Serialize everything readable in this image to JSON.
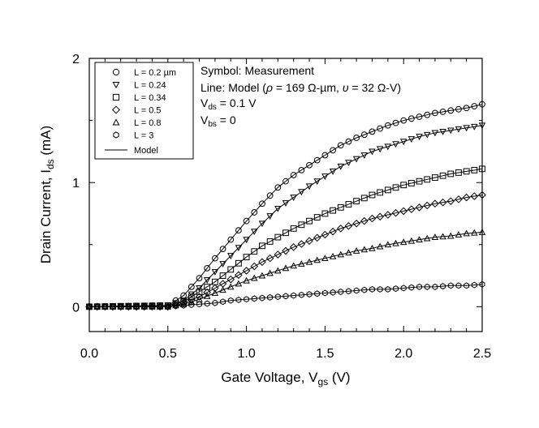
{
  "chart_data": {
    "type": "scatter",
    "xlabel": {
      "main": "Gate Voltage, V",
      "sub": "gs",
      "unit": " (V)"
    },
    "ylabel": {
      "main": "Drain Current, I",
      "sub": "ds",
      "unit": " (mA)"
    },
    "xlim": [
      0,
      2.5
    ],
    "ylim": [
      -0.2,
      2
    ],
    "x_ticks": [
      0.0,
      0.5,
      1.0,
      1.5,
      2.0,
      2.5
    ],
    "x_tick_labels": [
      "0.0",
      "0.5",
      "1.0",
      "1.5",
      "2.0",
      "2.5"
    ],
    "y_ticks": [
      0,
      1,
      2
    ],
    "y_tick_labels": [
      "0",
      "1",
      "2"
    ],
    "grid": false,
    "legend_position": "top-left",
    "series": [
      {
        "name": "L = 0.2 µm",
        "marker": "circle",
        "vth": 0.5,
        "ymax": 1.63,
        "x": [
          0.0,
          0.5,
          0.6,
          0.7,
          0.8,
          0.9,
          1.0,
          1.1,
          1.2,
          1.3,
          1.4,
          1.5,
          1.6,
          1.7,
          1.8,
          1.9,
          2.0,
          2.1,
          2.2,
          2.3,
          2.4,
          2.5
        ],
        "values": [
          0.0,
          0.01,
          0.09,
          0.23,
          0.39,
          0.54,
          0.69,
          0.83,
          0.96,
          1.06,
          1.14,
          1.22,
          1.3,
          1.36,
          1.41,
          1.46,
          1.5,
          1.53,
          1.56,
          1.58,
          1.6,
          1.63
        ]
      },
      {
        "name": "L = 0.24",
        "marker": "triangle-down",
        "vth": 0.52,
        "ymax": 1.46,
        "x": [
          0.0,
          0.5,
          0.6,
          0.7,
          0.8,
          0.9,
          1.0,
          1.1,
          1.2,
          1.3,
          1.4,
          1.5,
          1.6,
          1.7,
          1.8,
          1.9,
          2.0,
          2.1,
          2.2,
          2.3,
          2.4,
          2.5
        ],
        "values": [
          0.0,
          0.01,
          0.05,
          0.15,
          0.28,
          0.41,
          0.54,
          0.67,
          0.79,
          0.88,
          0.97,
          1.05,
          1.13,
          1.19,
          1.25,
          1.29,
          1.33,
          1.37,
          1.4,
          1.42,
          1.44,
          1.46
        ]
      },
      {
        "name": "L = 0.34",
        "marker": "square",
        "vth": 0.53,
        "ymax": 1.11,
        "x": [
          0.0,
          0.5,
          0.6,
          0.7,
          0.8,
          0.9,
          1.0,
          1.1,
          1.2,
          1.3,
          1.4,
          1.5,
          1.6,
          1.7,
          1.8,
          1.9,
          2.0,
          2.1,
          2.2,
          2.3,
          2.4,
          2.5
        ],
        "values": [
          0.0,
          0.01,
          0.04,
          0.12,
          0.2,
          0.3,
          0.4,
          0.49,
          0.56,
          0.63,
          0.69,
          0.75,
          0.8,
          0.85,
          0.9,
          0.94,
          0.98,
          1.01,
          1.04,
          1.07,
          1.09,
          1.11
        ]
      },
      {
        "name": "L = 0.5",
        "marker": "diamond",
        "vth": 0.55,
        "ymax": 0.9,
        "x": [
          0.0,
          0.5,
          0.6,
          0.7,
          0.8,
          0.9,
          1.0,
          1.1,
          1.2,
          1.3,
          1.4,
          1.5,
          1.6,
          1.7,
          1.8,
          1.9,
          2.0,
          2.1,
          2.2,
          2.3,
          2.4,
          2.5
        ],
        "values": [
          0.0,
          0.0,
          0.03,
          0.08,
          0.15,
          0.22,
          0.29,
          0.36,
          0.42,
          0.48,
          0.53,
          0.58,
          0.63,
          0.67,
          0.71,
          0.74,
          0.77,
          0.8,
          0.83,
          0.85,
          0.88,
          0.9
        ]
      },
      {
        "name": "L = 0.8",
        "marker": "triangle-up",
        "vth": 0.55,
        "ymax": 0.6,
        "x": [
          0.0,
          0.5,
          0.6,
          0.7,
          0.8,
          0.9,
          1.0,
          1.1,
          1.2,
          1.3,
          1.4,
          1.5,
          1.6,
          1.7,
          1.8,
          1.9,
          2.0,
          2.1,
          2.2,
          2.3,
          2.4,
          2.5
        ],
        "values": [
          0.0,
          0.0,
          0.02,
          0.06,
          0.11,
          0.16,
          0.21,
          0.25,
          0.29,
          0.33,
          0.36,
          0.39,
          0.42,
          0.45,
          0.47,
          0.5,
          0.52,
          0.54,
          0.56,
          0.57,
          0.59,
          0.6
        ]
      },
      {
        "name": "L = 3",
        "marker": "hexagon",
        "vth": 0.55,
        "ymax": 0.18,
        "x": [
          0.0,
          0.5,
          0.6,
          0.7,
          0.8,
          0.9,
          1.0,
          1.1,
          1.2,
          1.3,
          1.4,
          1.5,
          1.6,
          1.7,
          1.8,
          1.9,
          2.0,
          2.1,
          2.2,
          2.3,
          2.4,
          2.5
        ],
        "values": [
          0.0,
          0.0,
          0.01,
          0.02,
          0.03,
          0.05,
          0.06,
          0.07,
          0.08,
          0.09,
          0.1,
          0.11,
          0.12,
          0.13,
          0.14,
          0.14,
          0.15,
          0.16,
          0.16,
          0.17,
          0.17,
          0.18
        ]
      }
    ],
    "legend_line_label": "Model",
    "annotations": {
      "line1": "Symbol: Measurement",
      "line2_prefix": "Line: Model (",
      "rho_symbol": "ρ",
      "rho_value": " = 169 Ω-µm, ",
      "nu_symbol": "υ",
      "nu_value": " = 32 Ω-V)",
      "vds_main": "V",
      "vds_sub": "ds",
      "vds_value": " = 0.1 V",
      "vbs_main": "V",
      "vbs_sub": "bs",
      "vbs_value": " = 0"
    }
  }
}
